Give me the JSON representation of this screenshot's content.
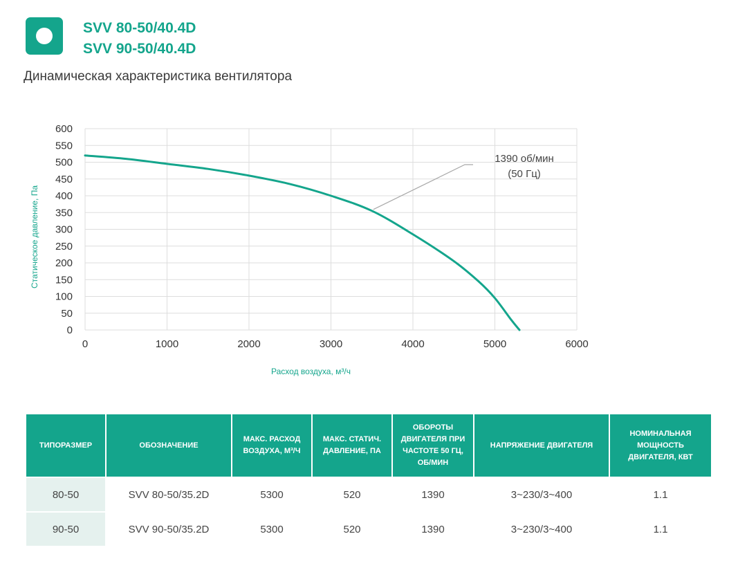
{
  "header": {
    "models": [
      "SVV 80-50/40.4D",
      "SVV 90-50/40.4D"
    ],
    "subtitle": "Динамическая характеристика вентилятора"
  },
  "chart_data": {
    "type": "line",
    "title": "",
    "xlabel": "Расход воздуха, м³/ч",
    "ylabel": "Статическое давление, Па",
    "xlim": [
      0,
      6000
    ],
    "ylim": [
      0,
      600
    ],
    "xticks": [
      0,
      1000,
      2000,
      3000,
      4000,
      5000,
      6000
    ],
    "yticks": [
      0,
      50,
      100,
      150,
      200,
      250,
      300,
      350,
      400,
      450,
      500,
      550,
      600
    ],
    "grid": true,
    "series": [
      {
        "name": "1390 об/мин (50 Гц)",
        "color": "#14a58c",
        "x": [
          0,
          500,
          1000,
          1500,
          2000,
          2500,
          3000,
          3500,
          4000,
          4500,
          4800,
          5000,
          5200,
          5300
        ],
        "y": [
          520,
          510,
          495,
          480,
          460,
          435,
          400,
          355,
          285,
          205,
          145,
          95,
          30,
          0
        ]
      }
    ],
    "annotation": {
      "lines": [
        "1390 об/мин",
        "(50 Гц)"
      ],
      "point": [
        3500,
        355
      ]
    }
  },
  "table": {
    "headers": [
      "ТИПОРАЗМЕР",
      "ОБОЗНАЧЕНИЕ",
      "МАКС. РАСХОД ВОЗДУХА, М³/Ч",
      "МАКС. СТАТИЧ. ДАВЛЕНИЕ, ПА",
      "ОБОРОТЫ ДВИГАТЕЛЯ ПРИ ЧАСТОТЕ 50 ГЦ, ОБ/МИН",
      "НАПРЯЖЕНИЕ ДВИГАТЕЛЯ",
      "НОМИНАЛЬНАЯ МОЩНОСТЬ ДВИГАТЕЛЯ, КВТ"
    ],
    "rows": [
      [
        "80-50",
        "SVV 80-50/35.2D",
        "5300",
        "520",
        "1390",
        "3~230/3~400",
        "1.1"
      ],
      [
        "90-50",
        "SVV 90-50/35.2D",
        "5300",
        "520",
        "1390",
        "3~230/3~400",
        "1.1"
      ]
    ]
  },
  "colors": {
    "accent": "#14a58c",
    "grid": "#dddddd",
    "first_col_bg": "#e5f1ee"
  }
}
